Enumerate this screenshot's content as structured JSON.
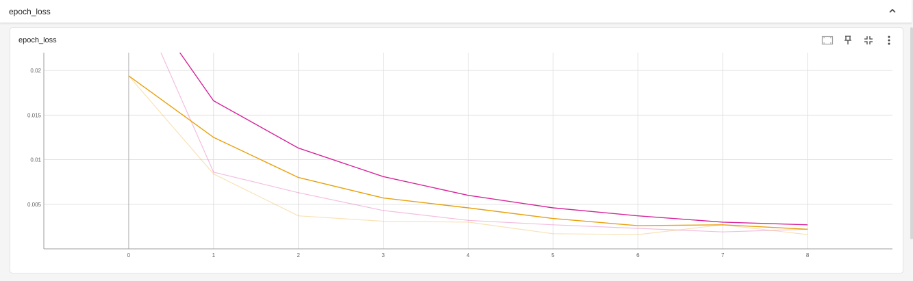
{
  "group": {
    "title": "epoch_loss",
    "collapse_icon": "chevron-up-icon"
  },
  "card": {
    "title": "epoch_loss",
    "toolbar": {
      "icons": [
        "fit-domain-icon",
        "pin-icon",
        "collapse-card-icon",
        "more-vert-icon"
      ]
    }
  },
  "chart_data": {
    "type": "line",
    "title": "epoch_loss",
    "xlabel": "",
    "ylabel": "",
    "x_ticks": [
      "0",
      "1",
      "2",
      "3",
      "4",
      "5",
      "6",
      "7",
      "8"
    ],
    "y_ticks": [
      "0.005",
      "0.01",
      "0.015",
      "0.02"
    ],
    "xlim": [
      -1,
      9
    ],
    "ylim": [
      0,
      0.022
    ],
    "grid": true,
    "legend": "none",
    "series": [
      {
        "color": "#d6249a",
        "opacity": 1.0,
        "width": 1.4,
        "x": [
          0,
          1,
          2,
          3,
          4,
          5,
          6,
          7,
          8
        ],
        "y": [
          0.0302,
          0.0166,
          0.0113,
          0.0081,
          0.006,
          0.0046,
          0.0037,
          0.003,
          0.0027
        ]
      },
      {
        "color": "#e8a00c",
        "opacity": 1.0,
        "width": 1.4,
        "x": [
          0,
          1,
          2,
          3,
          4,
          5,
          6,
          7,
          8
        ],
        "y": [
          0.0194,
          0.0125,
          0.008,
          0.0057,
          0.0046,
          0.0034,
          0.0026,
          0.0027,
          0.0022
        ]
      },
      {
        "color": "#d6249a",
        "opacity": 0.3,
        "width": 1.2,
        "x": [
          0,
          1,
          2,
          3,
          4,
          5,
          6,
          7,
          8
        ],
        "y": [
          0.0302,
          0.0086,
          0.0063,
          0.0043,
          0.0032,
          0.0027,
          0.0023,
          0.0019,
          0.0022
        ]
      },
      {
        "color": "#e8a00c",
        "opacity": 0.3,
        "width": 1.2,
        "x": [
          0,
          1,
          2,
          3,
          4,
          5,
          6,
          7,
          8
        ],
        "y": [
          0.0194,
          0.0084,
          0.0037,
          0.0031,
          0.003,
          0.0017,
          0.0016,
          0.0027,
          0.0016
        ]
      }
    ]
  }
}
